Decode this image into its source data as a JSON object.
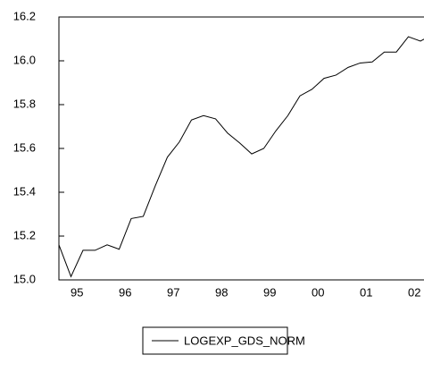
{
  "chart_data": {
    "type": "line",
    "categories": [
      null,
      "95",
      null,
      null,
      null,
      "96",
      null,
      null,
      null,
      "97",
      null,
      null,
      null,
      "98",
      null,
      null,
      null,
      "99",
      null,
      null,
      null,
      "00",
      null,
      null,
      null,
      "01",
      null,
      null,
      null,
      "02",
      null,
      null
    ],
    "series": [
      {
        "name": "LOGEXP_GDS_NORM",
        "color": "#000000",
        "values": [
          15.16,
          15.015,
          15.135,
          15.135,
          15.16,
          15.14,
          15.28,
          15.29,
          15.43,
          15.56,
          15.63,
          15.73,
          15.75,
          15.735,
          15.67,
          15.625,
          15.575,
          15.6,
          15.68,
          15.75,
          15.84,
          15.87,
          15.92,
          15.935,
          15.97,
          15.99,
          15.995,
          16.04,
          16.04,
          16.11,
          16.09,
          16.12
        ]
      }
    ],
    "ylim": [
      15.0,
      16.2
    ],
    "yticks": [
      {
        "value": 15.0,
        "label": "15.0"
      },
      15.2,
      15.4,
      15.6,
      15.8,
      {
        "value": 16.0,
        "label": "16.0"
      },
      16.2
    ],
    "legend": "bottom"
  }
}
